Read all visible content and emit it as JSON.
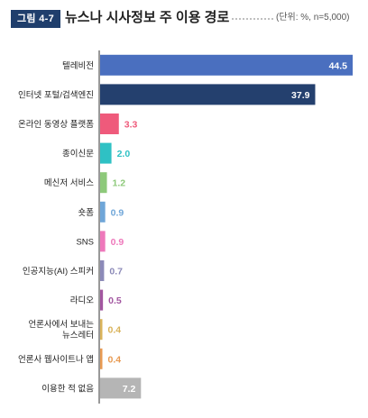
{
  "header": {
    "badge": "그림 4-7",
    "title": "뉴스나 시사정보 주 이용 경로",
    "unit_note": "(단위: %, n=5,000)"
  },
  "chart_data": {
    "type": "bar",
    "orientation": "horizontal",
    "title": "뉴스나 시사정보 주 이용 경로",
    "unit": "%",
    "categories": [
      "텔레비전",
      "인터넷 포털/검색엔진",
      "온라인 동영상 플랫폼",
      "종이신문",
      "메신저 서비스",
      "숏폼",
      "SNS",
      "인공지능(AI) 스피커",
      "라디오",
      "언론사에서 보내는\n뉴스레터",
      "언론사 웹사이트나 앱",
      "이용한 적 없음"
    ],
    "values": [
      44.5,
      37.9,
      3.3,
      2.0,
      1.2,
      0.9,
      0.9,
      0.7,
      0.5,
      0.4,
      0.4,
      7.2
    ],
    "value_labels": [
      "44.5",
      "37.9",
      "3.3",
      "2.0",
      "1.2",
      "0.9",
      "0.9",
      "0.7",
      "0.5",
      "0.4",
      "0.4",
      "7.2"
    ],
    "colors": [
      "#4a6fbf",
      "#24406e",
      "#ef5a7b",
      "#2fc1c4",
      "#8dc97a",
      "#6fa6d8",
      "#ee78bb",
      "#8c8ab8",
      "#a256a0",
      "#d9b35a",
      "#e89a52",
      "#b5b5b5"
    ],
    "label_colors": [
      "#ffffff",
      "#ffffff",
      "#ef5a7b",
      "#2fc1c4",
      "#8dc97a",
      "#6fa6d8",
      "#ee78bb",
      "#8c8ab8",
      "#a256a0",
      "#d9b35a",
      "#e89a52",
      "#ffffff"
    ],
    "xlim": [
      0,
      44.5
    ],
    "grid": false,
    "legend": "none"
  }
}
